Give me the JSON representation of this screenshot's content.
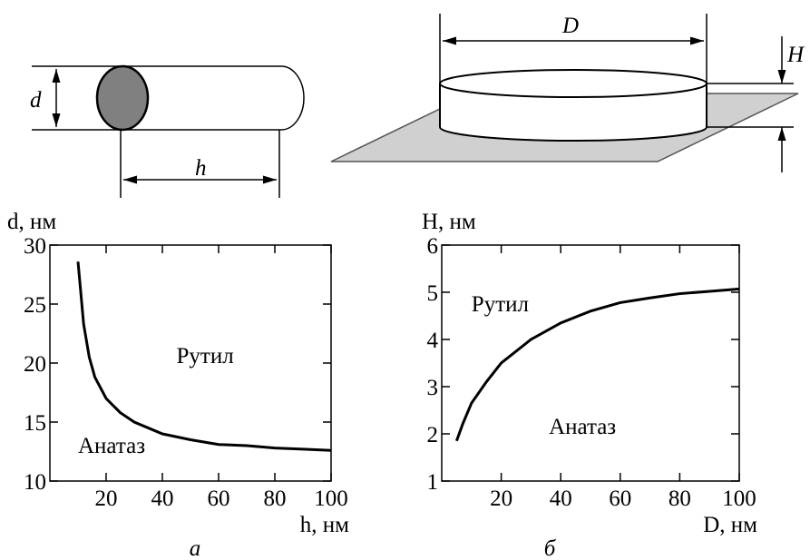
{
  "diagrams": {
    "rod": {
      "diameter_label": "d",
      "length_label": "h"
    },
    "disk": {
      "diameter_label": "D",
      "height_label": "H"
    }
  },
  "chart_data": [
    {
      "type": "line",
      "caption": "а",
      "xlabel": "h, нм",
      "ylabel": "d, нм",
      "x": [
        10,
        12,
        14,
        16,
        20,
        25,
        30,
        40,
        50,
        60,
        70,
        80,
        90,
        100
      ],
      "values": [
        28.6,
        23.3,
        20.5,
        18.8,
        17,
        15.8,
        15,
        14,
        13.5,
        13.1,
        13,
        12.8,
        12.7,
        12.6
      ],
      "color": "#000000",
      "xlim": [
        0,
        100
      ],
      "ylim": [
        10,
        30
      ],
      "xticks": [
        20,
        40,
        60,
        80,
        100
      ],
      "yticks": [
        10,
        15,
        20,
        25,
        30
      ],
      "annotations": [
        "Рутил",
        "Анатаз"
      ]
    },
    {
      "type": "line",
      "caption": "б",
      "xlabel": "D, нм",
      "ylabel": "H, нм",
      "x": [
        5,
        7,
        10,
        15,
        20,
        30,
        40,
        50,
        60,
        70,
        80,
        90,
        100
      ],
      "values": [
        1.85,
        2.2,
        2.65,
        3.1,
        3.5,
        4.0,
        4.35,
        4.6,
        4.78,
        4.88,
        4.97,
        5.02,
        5.07
      ],
      "color": "#000000",
      "xlim": [
        0,
        100
      ],
      "ylim": [
        1,
        6
      ],
      "xticks": [
        20,
        40,
        60,
        80,
        100
      ],
      "yticks": [
        1,
        2,
        3,
        4,
        5,
        6
      ],
      "annotations": [
        "Рутил",
        "Анатаз"
      ]
    }
  ]
}
